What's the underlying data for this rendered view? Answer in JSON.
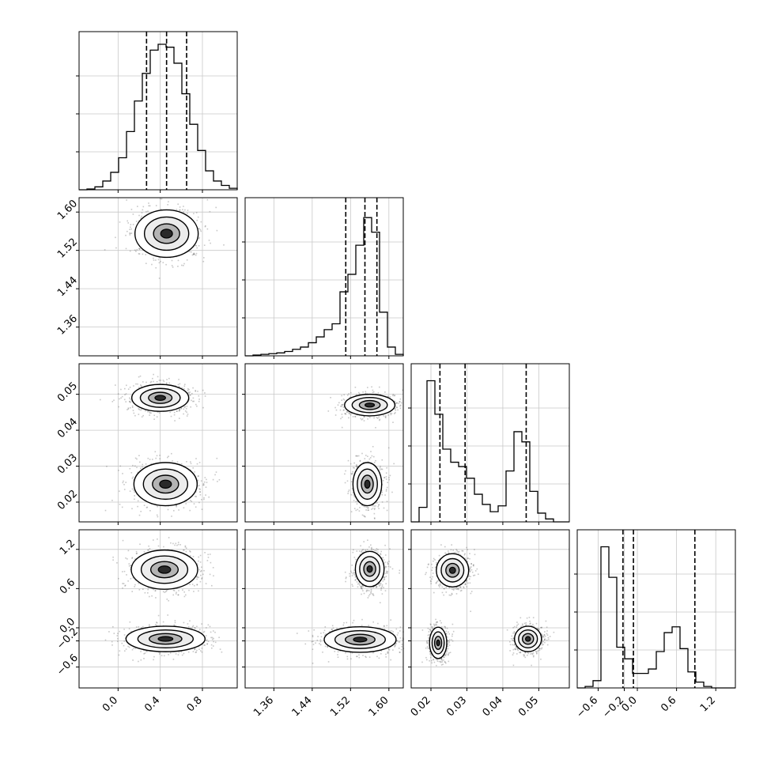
{
  "chart_data": {
    "type": "corner",
    "description": "",
    "params": [
      {
        "ticks": [
          "0.0",
          "0.4",
          "0.8"
        ],
        "tick_values": [
          0.0,
          0.4,
          0.8
        ],
        "range": [
          -0.37,
          1.13
        ],
        "hist": [
          0,
          0.005,
          0.02,
          0.06,
          0.12,
          0.22,
          0.4,
          0.61,
          0.8,
          0.96,
          1.0,
          0.98,
          0.87,
          0.66,
          0.45,
          0.27,
          0.13,
          0.06,
          0.03,
          0.01
        ],
        "quantiles": [
          0.27,
          0.46,
          0.65
        ]
      },
      {
        "ticks": [
          "1.36",
          "1.44",
          "1.52",
          "1.60"
        ],
        "tick_values": [
          1.36,
          1.44,
          1.52,
          1.6
        ],
        "range": [
          1.3,
          1.63
        ],
        "hist": [
          0,
          0.005,
          0.01,
          0.015,
          0.02,
          0.03,
          0.045,
          0.06,
          0.09,
          0.13,
          0.18,
          0.22,
          0.44,
          0.56,
          0.76,
          0.95,
          0.85,
          0.3,
          0.06,
          0.01
        ],
        "quantiles": [
          1.51,
          1.55,
          1.575
        ]
      },
      {
        "ticks": [
          "0.02",
          "0.03",
          "0.04",
          "0.05"
        ],
        "tick_values": [
          0.02,
          0.03,
          0.04,
          0.05
        ],
        "range": [
          0.0145,
          0.0585
        ],
        "hist": [
          0,
          0.1,
          0.97,
          0.74,
          0.5,
          0.41,
          0.38,
          0.3,
          0.19,
          0.12,
          0.07,
          0.11,
          0.35,
          0.62,
          0.55,
          0.21,
          0.06,
          0.02,
          0,
          0
        ],
        "quantiles": [
          0.0225,
          0.0295,
          0.0465
        ]
      },
      {
        "ticks": [
          "−0.6",
          "−0.2",
          "0.0",
          "0.6",
          "1.2"
        ],
        "tick_values": [
          -0.6,
          -0.2,
          0.0,
          0.6,
          1.2
        ],
        "range": [
          -0.92,
          1.5
        ],
        "hist": [
          0,
          0.01,
          0.05,
          0.97,
          0.76,
          0.28,
          0.2,
          0.1,
          0.1,
          0.13,
          0.25,
          0.38,
          0.42,
          0.27,
          0.11,
          0.04,
          0.01,
          0,
          0,
          0
        ],
        "quantiles": [
          -0.22,
          -0.06,
          0.88
        ]
      }
    ],
    "clusters": [
      {
        "x": 0.46,
        "y": 1.555,
        "sx": 0.2,
        "sy": 0.033
      },
      {
        "x": 0.4,
        "y": 0.049,
        "sx": 0.18,
        "sy": 0.0025
      },
      {
        "x": 0.45,
        "y": 0.025,
        "sx": 0.2,
        "sy": 0.004
      },
      {
        "x": 0.44,
        "y": 0.89,
        "sx": 0.21,
        "sy": 0.2
      },
      {
        "x": 0.45,
        "y": -0.17,
        "sx": 0.25,
        "sy": 0.13
      },
      {
        "x": 1.56,
        "y": 0.047,
        "sx": 0.035,
        "sy": 0.002
      },
      {
        "x": 1.555,
        "y": 0.025,
        "sx": 0.02,
        "sy": 0.004
      },
      {
        "x": 1.56,
        "y": 0.9,
        "sx": 0.02,
        "sy": 0.18
      },
      {
        "x": 1.54,
        "y": -0.18,
        "sx": 0.05,
        "sy": 0.13
      },
      {
        "x": 0.026,
        "y": 0.88,
        "sx": 0.003,
        "sy": 0.17
      },
      {
        "x": 0.022,
        "y": -0.23,
        "sx": 0.0016,
        "sy": 0.16
      },
      {
        "x": 0.047,
        "y": -0.17,
        "sx": 0.0025,
        "sy": 0.13
      }
    ],
    "pairs": [
      {
        "row": 1,
        "col": 0,
        "clusters": [
          0
        ]
      },
      {
        "row": 2,
        "col": 0,
        "clusters": [
          1,
          2
        ]
      },
      {
        "row": 2,
        "col": 1,
        "clusters": [
          5,
          6
        ]
      },
      {
        "row": 3,
        "col": 0,
        "clusters": [
          3,
          4
        ]
      },
      {
        "row": 3,
        "col": 1,
        "clusters": [
          7,
          8
        ]
      },
      {
        "row": 3,
        "col": 2,
        "clusters": [
          9,
          10,
          11
        ]
      }
    ],
    "grid": true,
    "title": "",
    "xlabel": "",
    "ylabel": ""
  }
}
